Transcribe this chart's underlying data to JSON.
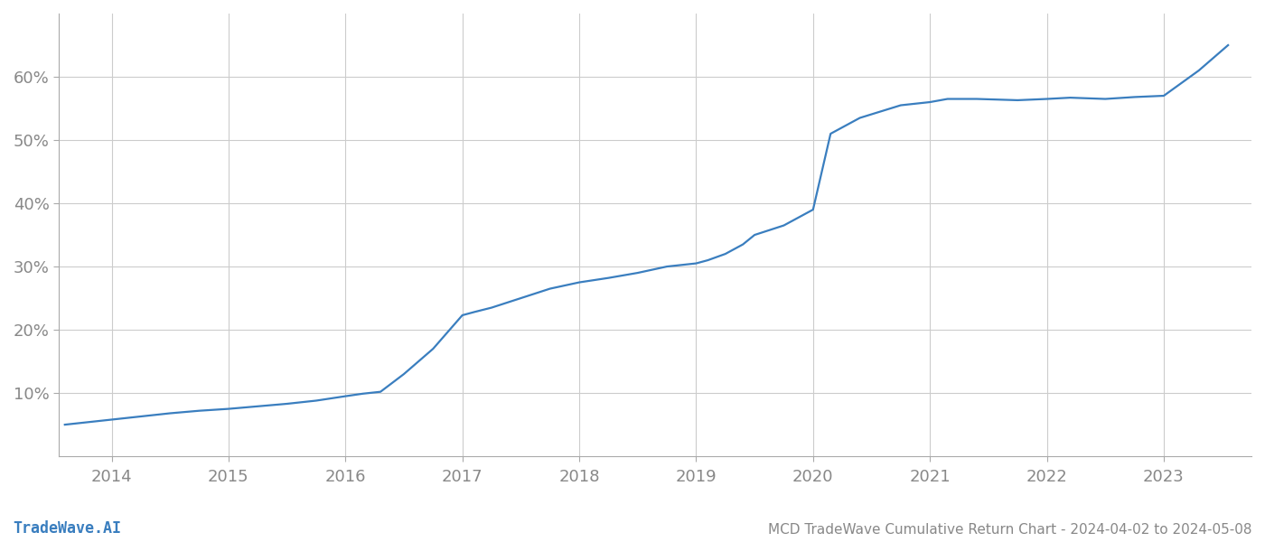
{
  "title": "MCD TradeWave Cumulative Return Chart - 2024-04-02 to 2024-05-08",
  "watermark": "TradeWave.AI",
  "line_color": "#3a7ebf",
  "background_color": "#ffffff",
  "grid_color": "#cccccc",
  "x_years": [
    2014,
    2015,
    2016,
    2017,
    2018,
    2019,
    2020,
    2021,
    2022,
    2023
  ],
  "x_data": [
    2013.6,
    2014.0,
    2014.25,
    2014.5,
    2014.75,
    2015.0,
    2015.25,
    2015.5,
    2015.75,
    2016.0,
    2016.15,
    2016.3,
    2016.5,
    2016.75,
    2017.0,
    2017.1,
    2017.25,
    2017.5,
    2017.75,
    2018.0,
    2018.25,
    2018.5,
    2018.75,
    2019.0,
    2019.1,
    2019.25,
    2019.4,
    2019.5,
    2019.75,
    2020.0,
    2020.05,
    2020.15,
    2020.4,
    2020.75,
    2021.0,
    2021.15,
    2021.4,
    2021.75,
    2022.0,
    2022.2,
    2022.5,
    2022.75,
    2023.0,
    2023.3,
    2023.55
  ],
  "y_data": [
    5.0,
    5.8,
    6.3,
    6.8,
    7.2,
    7.5,
    7.9,
    8.3,
    8.8,
    9.5,
    9.9,
    10.2,
    13.0,
    17.0,
    22.3,
    22.8,
    23.5,
    25.0,
    26.5,
    27.5,
    28.2,
    29.0,
    30.0,
    30.5,
    31.0,
    32.0,
    33.5,
    35.0,
    36.5,
    39.0,
    43.0,
    51.0,
    53.5,
    55.5,
    56.0,
    56.5,
    56.5,
    56.3,
    56.5,
    56.7,
    56.5,
    56.8,
    57.0,
    61.0,
    65.0
  ],
  "ylim": [
    0,
    70
  ],
  "yticks": [
    10,
    20,
    30,
    40,
    50,
    60
  ],
  "xlim": [
    2013.55,
    2023.75
  ],
  "title_fontsize": 11,
  "watermark_fontsize": 12,
  "tick_fontsize": 13,
  "line_width": 1.6
}
